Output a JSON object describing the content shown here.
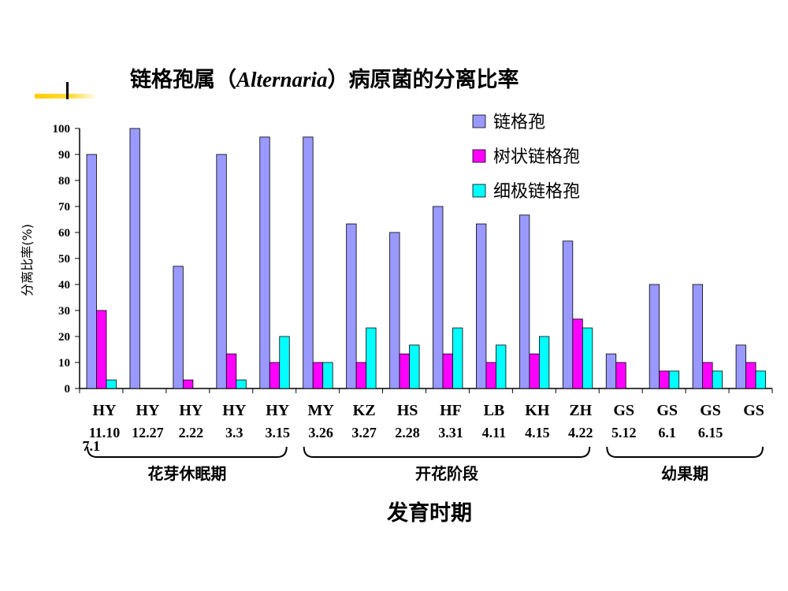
{
  "chart_data": {
    "type": "bar",
    "title_prefix": "链格孢属（",
    "title_italic": "Alternaria",
    "title_suffix": "）病原菌的分离比率",
    "ylabel": "分离比率(%)",
    "xlabel": "发育时期",
    "ylim": [
      0,
      100
    ],
    "yticks": [
      "0",
      "10",
      "20",
      "30",
      "40",
      "50",
      "60",
      "70",
      "80",
      "90",
      "100"
    ],
    "grid": false,
    "legend_position": "top-right",
    "categories": [
      {
        "line1": "HY",
        "line2": "11.10",
        "line3": "7.1"
      },
      {
        "line1": "HY",
        "line2": "12.27"
      },
      {
        "line1": "HY",
        "line2": "2.22"
      },
      {
        "line1": "HY",
        "line2": "3.3"
      },
      {
        "line1": "HY",
        "line2": "3.15"
      },
      {
        "line1": "MY",
        "line2": "3.26"
      },
      {
        "line1": "KZ",
        "line2": "3.27"
      },
      {
        "line1": "HS",
        "line2": "2.28"
      },
      {
        "line1": "HF",
        "line2": "3.31"
      },
      {
        "line1": "LB",
        "line2": "4.11"
      },
      {
        "line1": "KH",
        "line2": "4.15"
      },
      {
        "line1": "ZH",
        "line2": "4.22"
      },
      {
        "line1": "GS",
        "line2": "5.12"
      },
      {
        "line1": "GS",
        "line2": "6.1"
      },
      {
        "line1": "GS",
        "line2": "6.15"
      },
      {
        "line1": "GS",
        "line2": ""
      }
    ],
    "series": [
      {
        "name": "链格孢",
        "color": "#9999ff",
        "values": [
          90,
          100,
          47,
          90,
          96.7,
          96.7,
          63.3,
          60,
          70,
          63.3,
          66.7,
          56.7,
          13.3,
          40,
          40,
          16.7
        ]
      },
      {
        "name": "树状链格孢",
        "color": "#ff00ff",
        "values": [
          30,
          0,
          3.3,
          13.3,
          10,
          10,
          10,
          13.3,
          13.3,
          10,
          13.3,
          26.7,
          10,
          6.7,
          10,
          10
        ]
      },
      {
        "name": "细极链格孢",
        "color": "#00ffff",
        "values": [
          3.3,
          0,
          0,
          3.3,
          20,
          10,
          23.3,
          16.7,
          23.3,
          16.7,
          20,
          23.3,
          0,
          6.7,
          6.7,
          6.7
        ]
      }
    ],
    "groups": [
      {
        "label": "花芽休眠期",
        "from": 0,
        "to": 4
      },
      {
        "label": "开花阶段",
        "from": 5,
        "to": 11
      },
      {
        "label": "幼果期",
        "from": 12,
        "to": 15
      }
    ]
  },
  "decoration": {
    "accent_color": "#ffcc00"
  }
}
